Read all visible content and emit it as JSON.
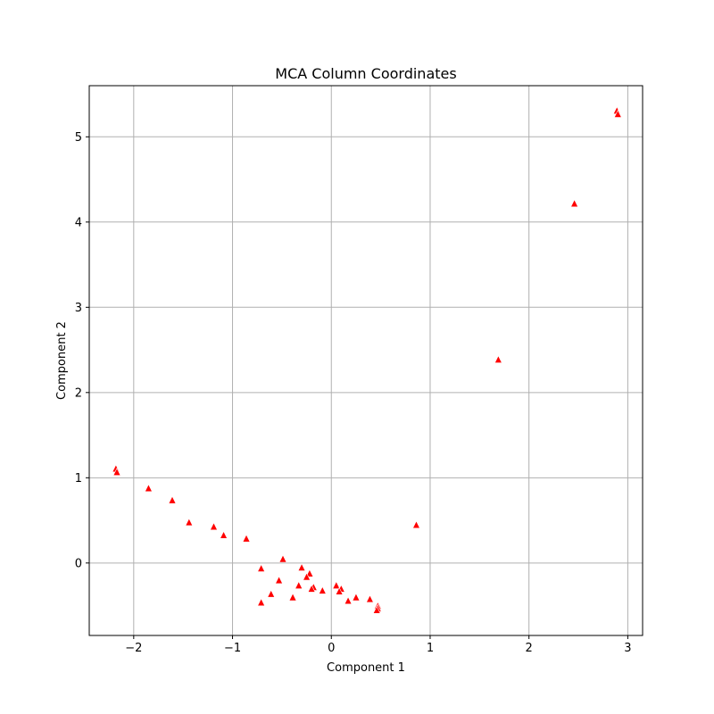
{
  "chart_data": {
    "type": "scatter",
    "title": "MCA Column Coordinates",
    "xlabel": "Component 1",
    "ylabel": "Component 2",
    "xlim": [
      -2.45,
      3.15
    ],
    "ylim": [
      -0.85,
      5.6
    ],
    "xticks": [
      -2,
      -1,
      0,
      1,
      2,
      3
    ],
    "yticks": [
      0,
      1,
      2,
      3,
      4,
      5
    ],
    "xtick_labels": [
      "−2",
      "−1",
      "0",
      "1",
      "2",
      "3"
    ],
    "ytick_labels": [
      "0",
      "1",
      "2",
      "3",
      "4",
      "5"
    ],
    "grid": true,
    "legend": "none",
    "marker": "triangle-up",
    "color": "#ff0000",
    "points": [
      {
        "x": 2.89,
        "y": 5.31
      },
      {
        "x": 2.9,
        "y": 5.27
      },
      {
        "x": 2.46,
        "y": 4.22
      },
      {
        "x": 1.69,
        "y": 2.39
      },
      {
        "x": 0.86,
        "y": 0.45
      },
      {
        "x": -2.18,
        "y": 1.11
      },
      {
        "x": -2.17,
        "y": 1.07
      },
      {
        "x": -1.85,
        "y": 0.88
      },
      {
        "x": -1.61,
        "y": 0.74
      },
      {
        "x": -1.44,
        "y": 0.48
      },
      {
        "x": -1.19,
        "y": 0.43
      },
      {
        "x": -1.09,
        "y": 0.33
      },
      {
        "x": -0.86,
        "y": 0.29
      },
      {
        "x": -0.49,
        "y": 0.05
      },
      {
        "x": -0.71,
        "y": -0.06
      },
      {
        "x": -0.3,
        "y": -0.05
      },
      {
        "x": -0.22,
        "y": -0.12
      },
      {
        "x": -0.25,
        "y": -0.16
      },
      {
        "x": -0.53,
        "y": -0.2
      },
      {
        "x": -0.33,
        "y": -0.26
      },
      {
        "x": -0.18,
        "y": -0.28
      },
      {
        "x": -0.2,
        "y": -0.3
      },
      {
        "x": -0.09,
        "y": -0.32
      },
      {
        "x": -0.61,
        "y": -0.36
      },
      {
        "x": -0.39,
        "y": -0.4
      },
      {
        "x": -0.71,
        "y": -0.46
      },
      {
        "x": 0.05,
        "y": -0.26
      },
      {
        "x": 0.1,
        "y": -0.3
      },
      {
        "x": 0.08,
        "y": -0.33
      },
      {
        "x": 0.25,
        "y": -0.4
      },
      {
        "x": 0.17,
        "y": -0.44
      },
      {
        "x": 0.39,
        "y": -0.42
      },
      {
        "x": 0.47,
        "y": -0.5
      },
      {
        "x": 0.47,
        "y": -0.53
      },
      {
        "x": 0.46,
        "y": -0.55
      }
    ]
  }
}
